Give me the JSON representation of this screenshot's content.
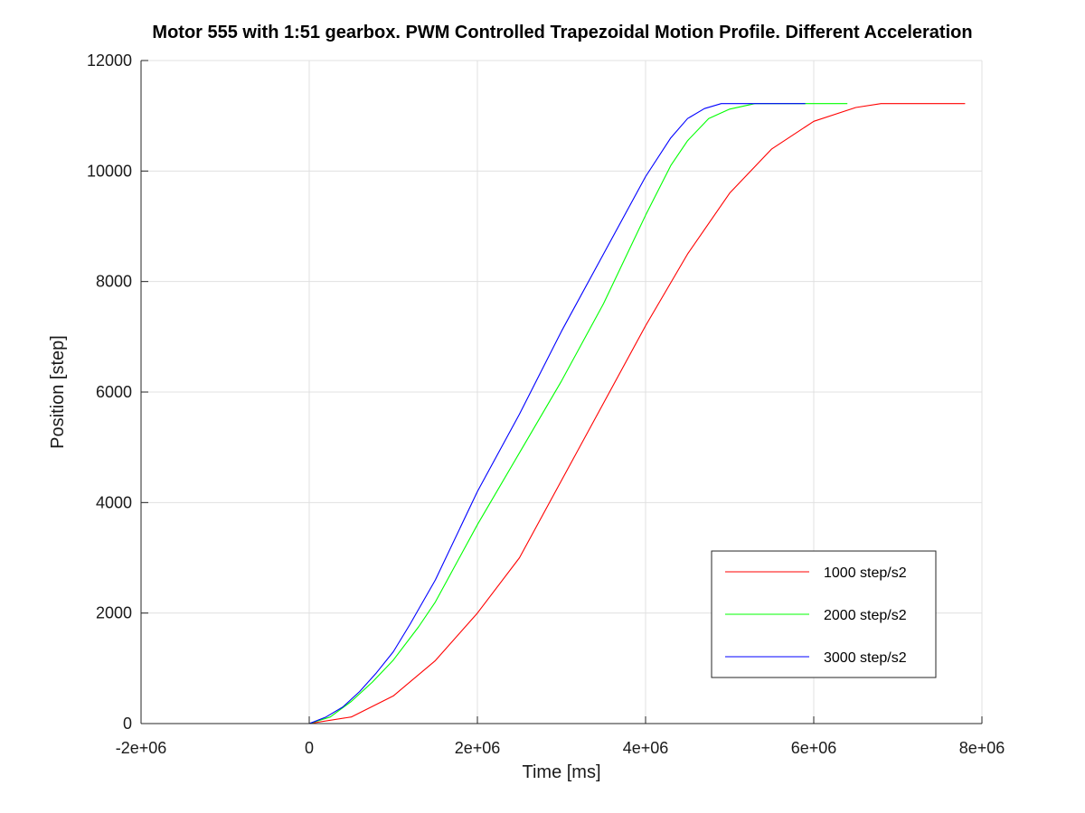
{
  "chart_data": {
    "type": "line",
    "title": "Motor 555 with 1:51 gearbox. PWM Controlled Trapezoidal Motion Profile. Different Acceleration",
    "xlabel": "Time [ms]",
    "ylabel": "Position [step]",
    "xlim": [
      -2000000,
      8000000
    ],
    "ylim": [
      0,
      12000
    ],
    "xticks": [
      -2000000,
      0,
      2000000,
      4000000,
      6000000,
      8000000
    ],
    "xtick_labels": [
      "-2e+06",
      "0",
      "2e+06",
      "4e+06",
      "6e+06",
      "8e+06"
    ],
    "yticks": [
      0,
      2000,
      4000,
      6000,
      8000,
      10000,
      12000
    ],
    "ytick_labels": [
      "0",
      "2000",
      "4000",
      "6000",
      "8000",
      "10000",
      "12000"
    ],
    "grid": true,
    "legend_position": "bottom-right",
    "series": [
      {
        "name": "1000 step/s2",
        "color": "#ff0000",
        "x": [
          0,
          500000,
          1000000,
          1500000,
          2000000,
          2500000,
          3000000,
          3500000,
          4000000,
          4500000,
          5000000,
          5500000,
          6000000,
          6500000,
          6800000,
          7800000
        ],
        "y": [
          0,
          120,
          500,
          1140,
          2000,
          3000,
          4400,
          5800,
          7200,
          8500,
          9600,
          10400,
          10900,
          11150,
          11220,
          11220
        ]
      },
      {
        "name": "2000 step/s2",
        "color": "#00ff00",
        "x": [
          0,
          250000,
          500000,
          750000,
          1000000,
          1300000,
          1500000,
          2000000,
          2500000,
          3000000,
          3500000,
          4000000,
          4300000,
          4500000,
          4750000,
          5000000,
          5300000,
          6400000
        ],
        "y": [
          0,
          120,
          400,
          750,
          1150,
          1750,
          2200,
          3600,
          4900,
          6200,
          7600,
          9200,
          10100,
          10550,
          10950,
          11120,
          11220,
          11220
        ]
      },
      {
        "name": "3000 step/s2",
        "color": "#0000ff",
        "x": [
          -200000,
          0,
          200000,
          400000,
          600000,
          800000,
          1000000,
          1200000,
          1500000,
          2000000,
          2500000,
          3000000,
          3500000,
          4000000,
          4300000,
          4500000,
          4700000,
          4900000,
          5900000
        ],
        "y": [
          0,
          0,
          120,
          300,
          580,
          920,
          1300,
          1800,
          2600,
          4200,
          5600,
          7100,
          8500,
          9900,
          10600,
          10950,
          11130,
          11220,
          11220
        ]
      }
    ]
  }
}
